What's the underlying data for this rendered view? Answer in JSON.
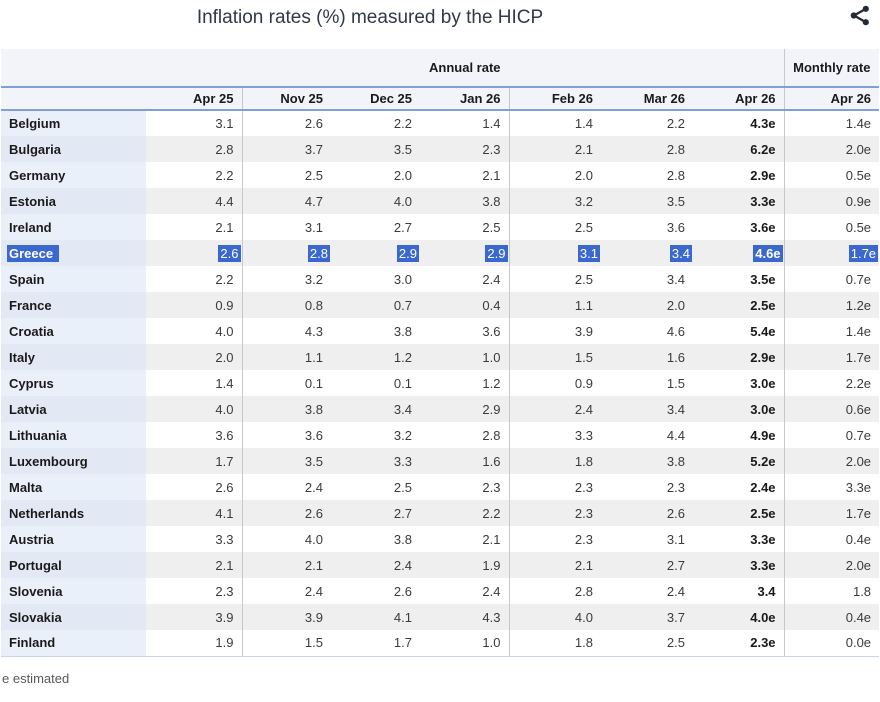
{
  "header": {
    "title": "Inflation rates (%) measured by the HICP",
    "share_icon": "share-network-icon"
  },
  "chart_data": {
    "type": "table",
    "title": "Inflation rates (%) measured by the HICP",
    "column_groups": [
      {
        "label": "Annual rate",
        "span": 7
      },
      {
        "label": "Monthly rate",
        "span": 1
      }
    ],
    "annual_columns": [
      "Apr 25",
      "Nov 25",
      "Dec 25",
      "Jan 26",
      "Feb 26",
      "Mar 26",
      "Apr 26"
    ],
    "monthly_column": "Apr 26",
    "selected_country": "Greece",
    "rows": [
      {
        "country": "Belgium",
        "values": [
          "3.1",
          "2.6",
          "2.2",
          "1.4",
          "1.4",
          "2.2",
          "4.3e",
          "1.4e"
        ],
        "selected": false
      },
      {
        "country": "Bulgaria",
        "values": [
          "2.8",
          "3.7",
          "3.5",
          "2.3",
          "2.1",
          "2.8",
          "6.2e",
          "2.0e"
        ],
        "selected": false
      },
      {
        "country": "Germany",
        "values": [
          "2.2",
          "2.5",
          "2.0",
          "2.1",
          "2.0",
          "2.8",
          "2.9e",
          "0.5e"
        ],
        "selected": false
      },
      {
        "country": "Estonia",
        "values": [
          "4.4",
          "4.7",
          "4.0",
          "3.8",
          "3.2",
          "3.5",
          "3.3e",
          "0.9e"
        ],
        "selected": false
      },
      {
        "country": "Ireland",
        "values": [
          "2.1",
          "3.1",
          "2.7",
          "2.5",
          "2.5",
          "3.6",
          "3.6e",
          "0.5e"
        ],
        "selected": false
      },
      {
        "country": "Greece",
        "values": [
          "2.6",
          "2.8",
          "2.9",
          "2.9",
          "3.1",
          "3.4",
          "4.6e",
          "1.7e"
        ],
        "selected": true
      },
      {
        "country": "Spain",
        "values": [
          "2.2",
          "3.2",
          "3.0",
          "2.4",
          "2.5",
          "3.4",
          "3.5e",
          "0.7e"
        ],
        "selected": false
      },
      {
        "country": "France",
        "values": [
          "0.9",
          "0.8",
          "0.7",
          "0.4",
          "1.1",
          "2.0",
          "2.5e",
          "1.2e"
        ],
        "selected": false
      },
      {
        "country": "Croatia",
        "values": [
          "4.0",
          "4.3",
          "3.8",
          "3.6",
          "3.9",
          "4.6",
          "5.4e",
          "1.4e"
        ],
        "selected": false
      },
      {
        "country": "Italy",
        "values": [
          "2.0",
          "1.1",
          "1.2",
          "1.0",
          "1.5",
          "1.6",
          "2.9e",
          "1.7e"
        ],
        "selected": false
      },
      {
        "country": "Cyprus",
        "values": [
          "1.4",
          "0.1",
          "0.1",
          "1.2",
          "0.9",
          "1.5",
          "3.0e",
          "2.2e"
        ],
        "selected": false
      },
      {
        "country": "Latvia",
        "values": [
          "4.0",
          "3.8",
          "3.4",
          "2.9",
          "2.4",
          "3.4",
          "3.0e",
          "0.6e"
        ],
        "selected": false
      },
      {
        "country": "Lithuania",
        "values": [
          "3.6",
          "3.6",
          "3.2",
          "2.8",
          "3.3",
          "4.4",
          "4.9e",
          "0.7e"
        ],
        "selected": false
      },
      {
        "country": "Luxembourg",
        "values": [
          "1.7",
          "3.5",
          "3.3",
          "1.6",
          "1.8",
          "3.8",
          "5.2e",
          "2.0e"
        ],
        "selected": false
      },
      {
        "country": "Malta",
        "values": [
          "2.6",
          "2.4",
          "2.5",
          "2.3",
          "2.3",
          "2.3",
          "2.4e",
          "3.3e"
        ],
        "selected": false
      },
      {
        "country": "Netherlands",
        "values": [
          "4.1",
          "2.6",
          "2.7",
          "2.2",
          "2.3",
          "2.6",
          "2.5e",
          "1.7e"
        ],
        "selected": false
      },
      {
        "country": "Austria",
        "values": [
          "3.3",
          "4.0",
          "3.8",
          "2.1",
          "2.3",
          "3.1",
          "3.3e",
          "0.4e"
        ],
        "selected": false
      },
      {
        "country": "Portugal",
        "values": [
          "2.1",
          "2.1",
          "2.4",
          "1.9",
          "2.1",
          "2.7",
          "3.3e",
          "2.0e"
        ],
        "selected": false
      },
      {
        "country": "Slovenia",
        "values": [
          "2.3",
          "2.4",
          "2.6",
          "2.4",
          "2.8",
          "2.4",
          "3.4",
          "1.8"
        ],
        "selected": false
      },
      {
        "country": "Slovakia",
        "values": [
          "3.9",
          "3.9",
          "4.1",
          "4.3",
          "4.0",
          "3.7",
          "4.0e",
          "0.4e"
        ],
        "selected": false
      },
      {
        "country": "Finland",
        "values": [
          "1.9",
          "1.5",
          "1.7",
          "1.0",
          "1.8",
          "2.5",
          "2.3e",
          "0.0e"
        ],
        "selected": false
      }
    ],
    "footnote": "e estimated"
  },
  "colors": {
    "selection": "#3b68ce",
    "selection_text": "#ffffff",
    "header_rule": "#7f9fd6",
    "row_stripe": "#efefef",
    "country_bg": "#eaf0fa",
    "country_stripe": "#e3e9f4",
    "header_bg": "#f2f4f9",
    "border_gray": "#c8c8c8"
  }
}
